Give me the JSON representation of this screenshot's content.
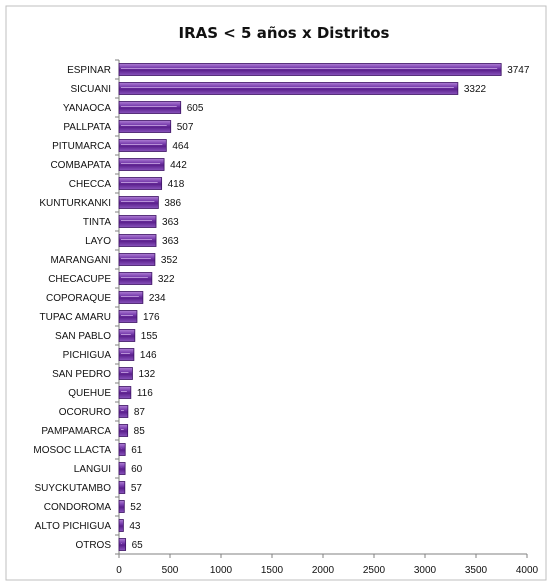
{
  "chart_data": {
    "type": "bar",
    "orientation": "horizontal",
    "title": "IRAS < 5 años  x Distritos",
    "xlabel": "",
    "ylabel": "",
    "xlim": [
      0,
      4000
    ],
    "x_ticks": [
      0,
      500,
      1000,
      1500,
      2000,
      2500,
      3000,
      3500,
      4000
    ],
    "grid": false,
    "legend": "none",
    "bar_color": "#7030a0",
    "categories": [
      "ESPINAR",
      "SICUANI",
      "YANAOCA",
      "PALLPATA",
      "PITUMARCA",
      "COMBAPATA",
      "CHECCA",
      "KUNTURKANKI",
      "TINTA",
      "LAYO",
      "MARANGANI",
      "CHECACUPE",
      "COPORAQUE",
      "TUPAC AMARU",
      "SAN PABLO",
      "PICHIGUA",
      "SAN PEDRO",
      "QUEHUE",
      "OCORURO",
      "PAMPAMARCA",
      "MOSOC LLACTA",
      "LANGUI",
      "SUYCKUTAMBO",
      "CONDOROMA",
      "ALTO PICHIGUA",
      "OTROS"
    ],
    "values": [
      3747,
      3322,
      605,
      507,
      464,
      442,
      418,
      386,
      363,
      363,
      352,
      322,
      234,
      176,
      155,
      146,
      132,
      116,
      87,
      85,
      61,
      60,
      57,
      52,
      43,
      65
    ]
  }
}
